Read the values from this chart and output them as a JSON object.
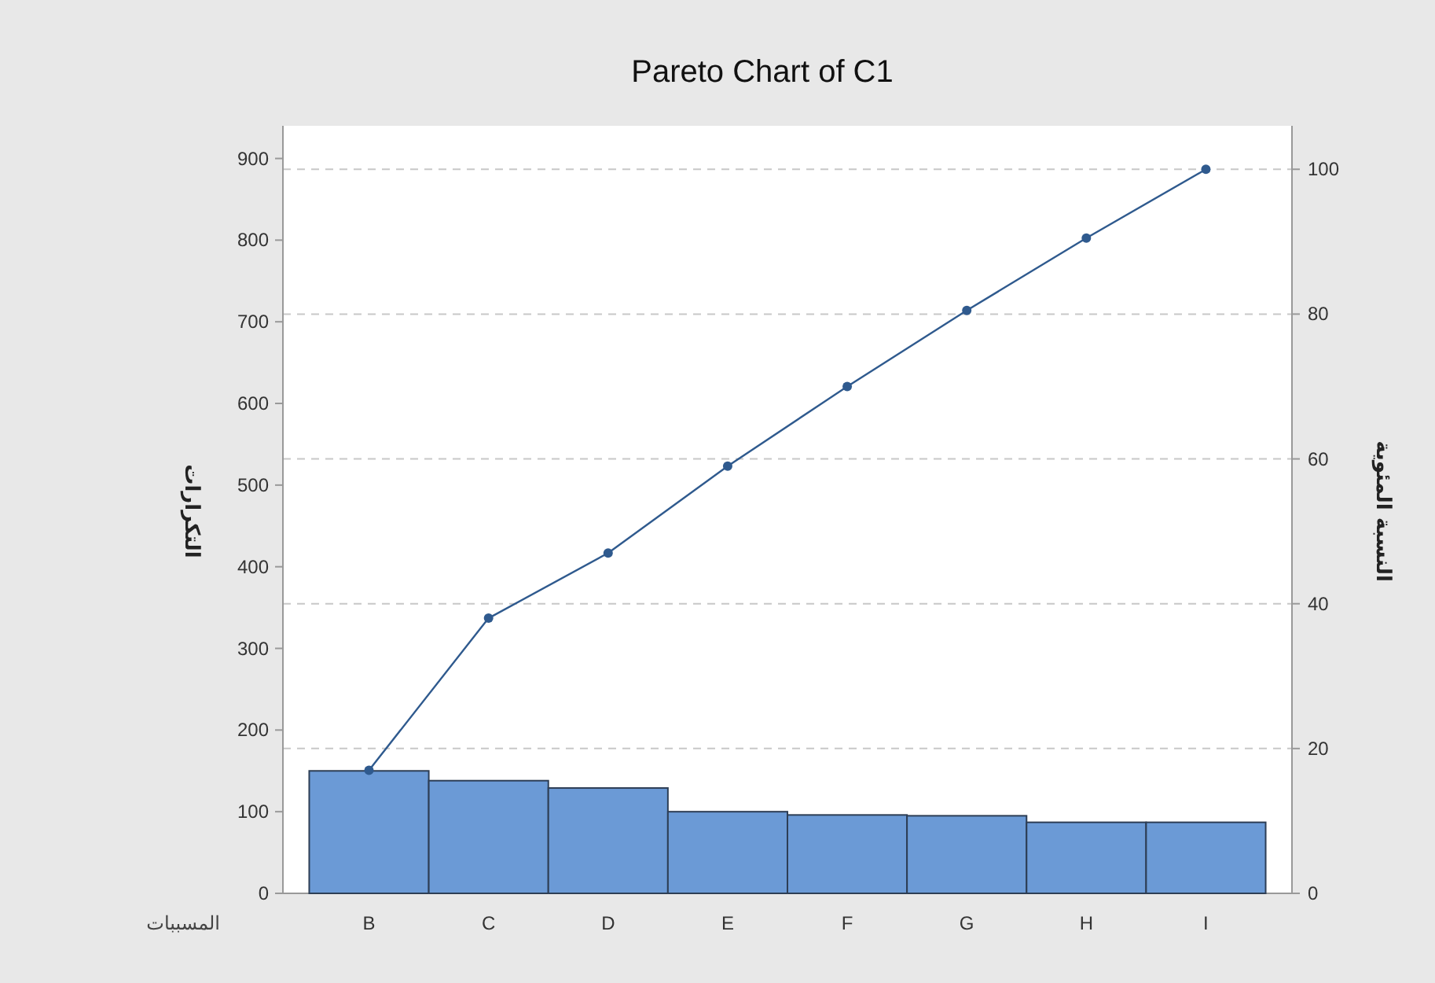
{
  "chart_data": {
    "type": "bar",
    "title": "Pareto Chart of C1",
    "xlabel": "المسببات",
    "ylabel": "التكرارات",
    "y2label": "النسبة المئوية",
    "categories": [
      "B",
      "C",
      "D",
      "E",
      "F",
      "G",
      "H",
      "I"
    ],
    "series": [
      {
        "color": "#6b9ad6",
        "values": [
          150,
          138,
          129,
          100,
          96,
          95,
          87,
          87
        ]
      },
      {
        "type": "line",
        "axis": "y2",
        "color": "#2f5a8e",
        "marker": "circle",
        "values": [
          17,
          38,
          47,
          59,
          70,
          80.5,
          90.5,
          100
        ]
      }
    ],
    "ylim": [
      0,
      940
    ],
    "yticks": [
      0,
      100,
      200,
      300,
      400,
      500,
      600,
      700,
      800,
      900
    ],
    "y2lim": [
      0,
      106
    ],
    "y2ticks": [
      0,
      20,
      40,
      60,
      80,
      100
    ],
    "grid": "y"
  }
}
